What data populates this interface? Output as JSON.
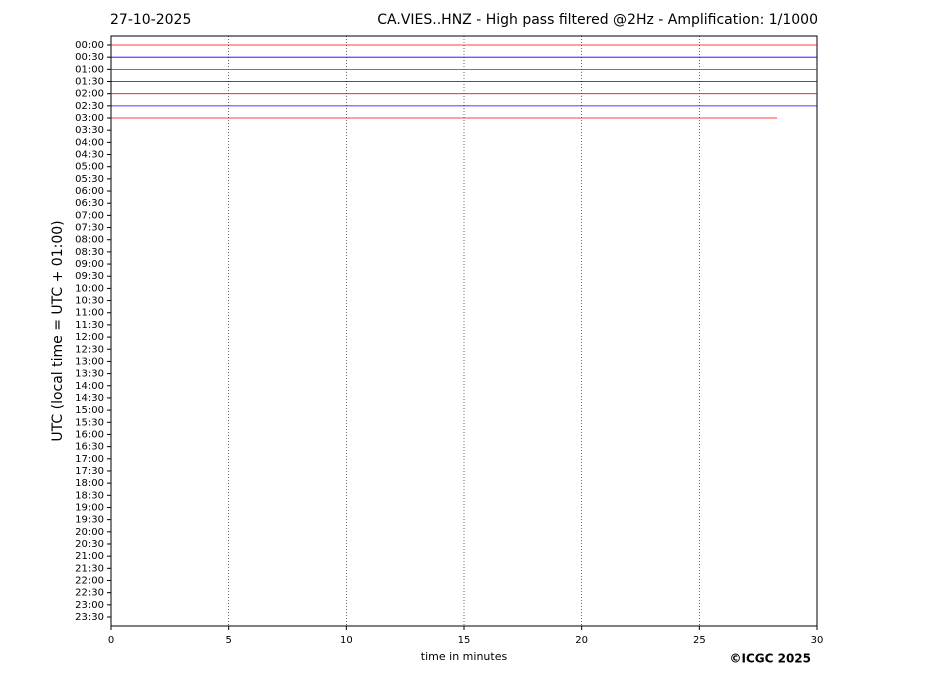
{
  "chart_data": {
    "type": "line",
    "date": "27-10-2025",
    "title": "CA.VIES..HNZ - High pass filtered @2Hz - Amplification: 1/1000",
    "xlabel": "time in minutes",
    "ylabel": "UTC (local time = UTC + 01:00)",
    "copyright": "©ICGC 2025",
    "categories": [
      "00:00",
      "00:30",
      "01:00",
      "01:30",
      "02:00",
      "02:30",
      "03:00",
      "03:30",
      "04:00",
      "04:30",
      "05:00",
      "05:30",
      "06:00",
      "06:30",
      "07:00",
      "07:30",
      "08:00",
      "08:30",
      "09:00",
      "09:30",
      "10:00",
      "10:30",
      "11:00",
      "11:30",
      "12:00",
      "12:30",
      "13:00",
      "13:30",
      "14:00",
      "14:30",
      "15:00",
      "15:30",
      "16:00",
      "16:30",
      "17:00",
      "17:30",
      "18:00",
      "18:30",
      "19:00",
      "19:30",
      "20:00",
      "20:30",
      "21:00",
      "21:30",
      "22:00",
      "22:30",
      "23:00",
      "23:30"
    ],
    "series": [
      {
        "color": "#ff0000",
        "x": [
          0,
          30
        ],
        "values": [
          0,
          0
        ]
      },
      {
        "color": "#0000ff",
        "x": [
          0,
          30
        ],
        "values": [
          0,
          0
        ]
      },
      {
        "color": "#ff0000",
        "x": [
          0,
          30
        ],
        "values": [
          0,
          0
        ]
      },
      {
        "color": "#0000ff",
        "x": [
          0,
          30
        ],
        "values": [
          0,
          0
        ]
      },
      {
        "color": "#ff0000",
        "x": [
          0,
          30
        ],
        "values": [
          0,
          0
        ]
      },
      {
        "color": "#0000ff",
        "x": [
          0,
          30
        ],
        "values": [
          0,
          0
        ]
      },
      {
        "color": "#ff0000",
        "x": [
          0,
          28.3
        ],
        "values": [
          0,
          0
        ]
      }
    ],
    "xlim": [
      0,
      30
    ],
    "xticks": [
      0,
      5,
      10,
      15,
      20,
      25,
      30
    ],
    "grid": true
  }
}
